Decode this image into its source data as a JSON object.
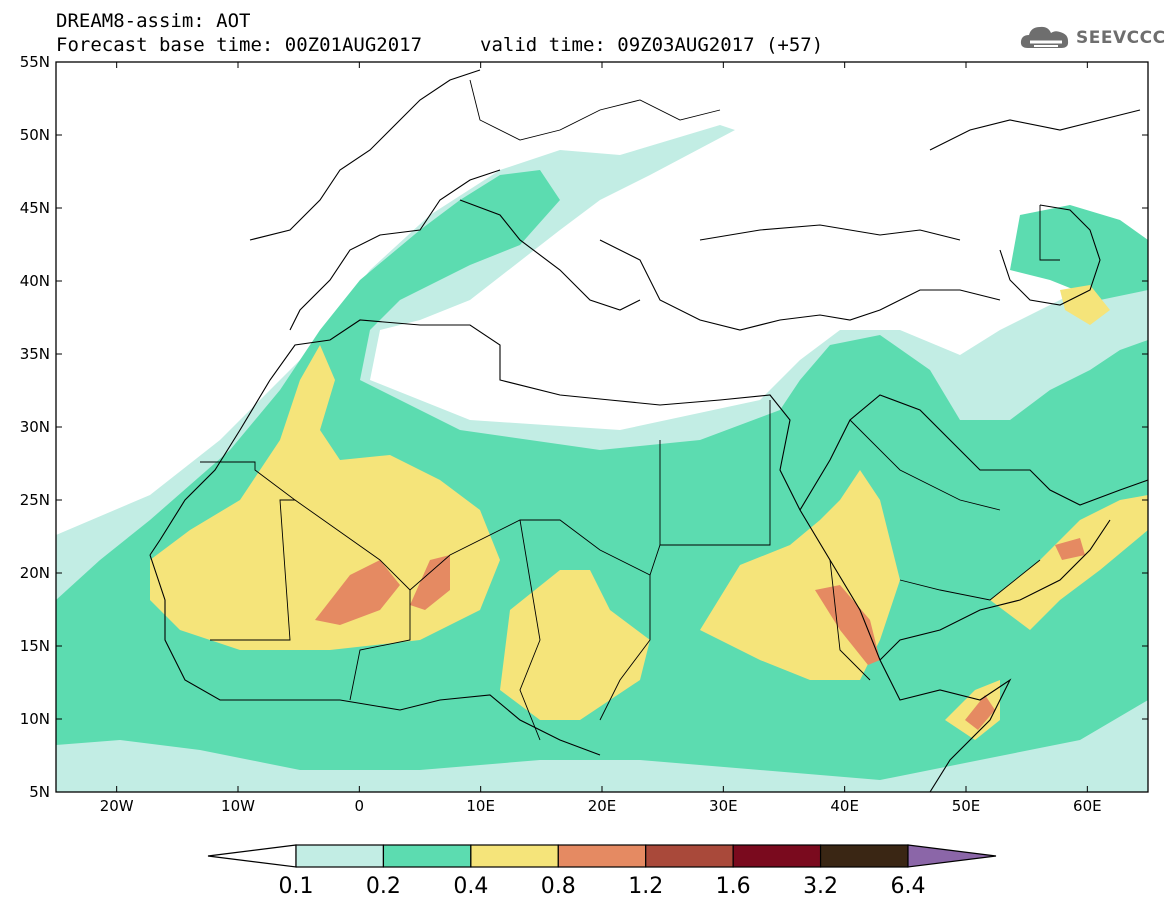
{
  "header": {
    "title": "DREAM8-assim: AOT",
    "base_time": "Forecast base time: 00Z01AUG2017",
    "valid_time": "valid time: 09Z03AUG2017 (+57)"
  },
  "logo": {
    "text": "SEEVCCC",
    "icon": "cloud-icon"
  },
  "map": {
    "lon_range": [
      -25,
      65
    ],
    "lat_range": [
      5,
      55
    ],
    "x_ticks": [
      {
        "value": -20,
        "label": "20W"
      },
      {
        "value": -10,
        "label": "10W"
      },
      {
        "value": 0,
        "label": "0"
      },
      {
        "value": 10,
        "label": "10E"
      },
      {
        "value": 20,
        "label": "20E"
      },
      {
        "value": 30,
        "label": "30E"
      },
      {
        "value": 40,
        "label": "40E"
      },
      {
        "value": 50,
        "label": "50E"
      },
      {
        "value": 60,
        "label": "60E"
      }
    ],
    "y_ticks": [
      {
        "value": 5,
        "label": "5N"
      },
      {
        "value": 10,
        "label": "10N"
      },
      {
        "value": 15,
        "label": "15N"
      },
      {
        "value": 20,
        "label": "20N"
      },
      {
        "value": 25,
        "label": "25N"
      },
      {
        "value": 30,
        "label": "30N"
      },
      {
        "value": 35,
        "label": "35N"
      },
      {
        "value": 40,
        "label": "40N"
      },
      {
        "value": 45,
        "label": "45N"
      },
      {
        "value": 50,
        "label": "50N"
      },
      {
        "value": 55,
        "label": "55N"
      }
    ]
  },
  "colorbar": {
    "levels": [
      "0.1",
      "0.2",
      "0.4",
      "0.8",
      "1.2",
      "1.6",
      "3.2",
      "6.4"
    ],
    "colors": {
      "below": "#ffffff",
      "bins": [
        "#c2ede4",
        "#5cdcb0",
        "#f5e47a",
        "#e58a62",
        "#a9493a",
        "#7a0a1e",
        "#3a2614"
      ],
      "above": "#8b66a8"
    }
  }
}
